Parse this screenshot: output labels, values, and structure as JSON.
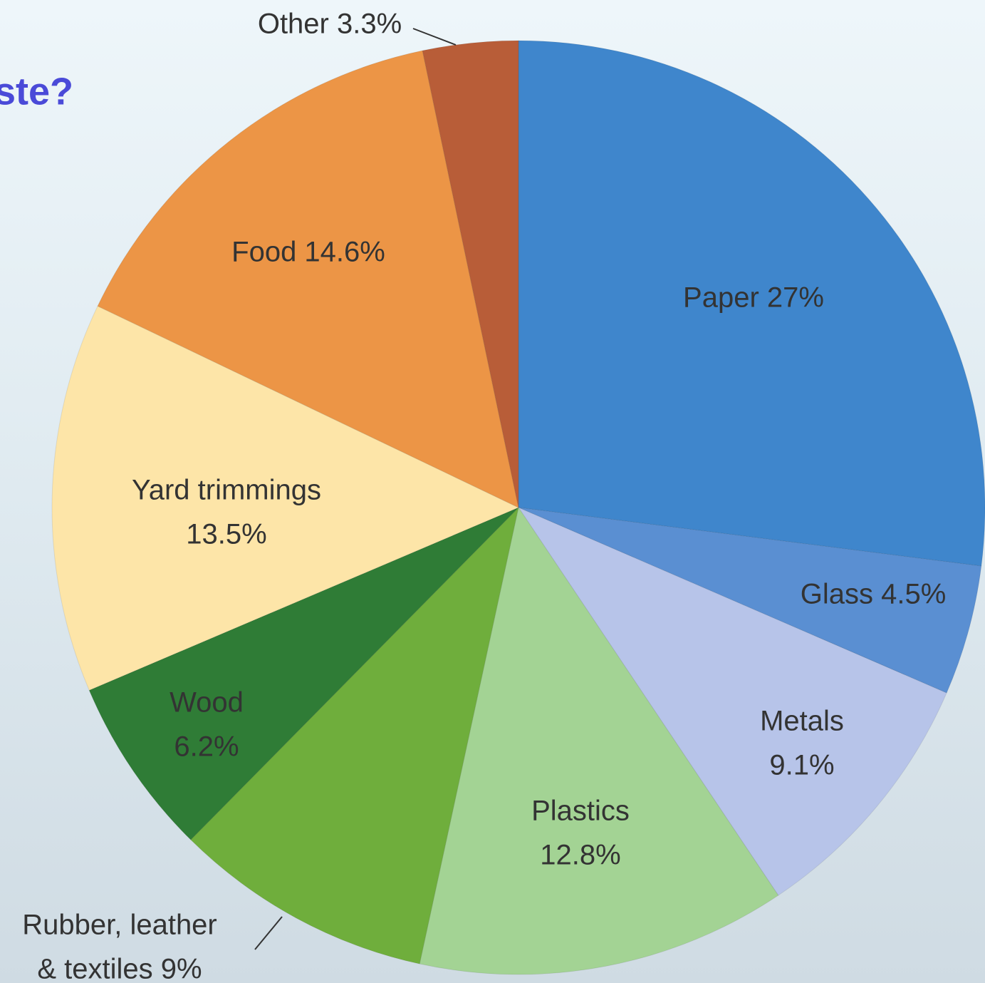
{
  "chart_data": {
    "type": "pie",
    "title": "ste?",
    "values": [
      27,
      4.5,
      9.1,
      12.8,
      9,
      6.2,
      13.5,
      14.6,
      3.3
    ],
    "value_labels": [
      [
        "Paper 27%"
      ],
      [
        "Glass 4.5%"
      ],
      [
        "Metals",
        "9.1%"
      ],
      [
        "Plastics",
        "12.8%"
      ],
      [
        "Rubber, leather",
        "& textiles 9%"
      ],
      [
        "Wood",
        "6.2%"
      ],
      [
        "Yard trimmings",
        "13.5%"
      ],
      [
        "Food 14.6%"
      ],
      [
        "Other 3.3%"
      ]
    ],
    "colors": [
      "#3f86cc",
      "#5a8fd2",
      "#b7c4e9",
      "#a3d394",
      "#6fae3c",
      "#2f7c36",
      "#fde5a8",
      "#ec9546",
      "#b85d38"
    ]
  }
}
